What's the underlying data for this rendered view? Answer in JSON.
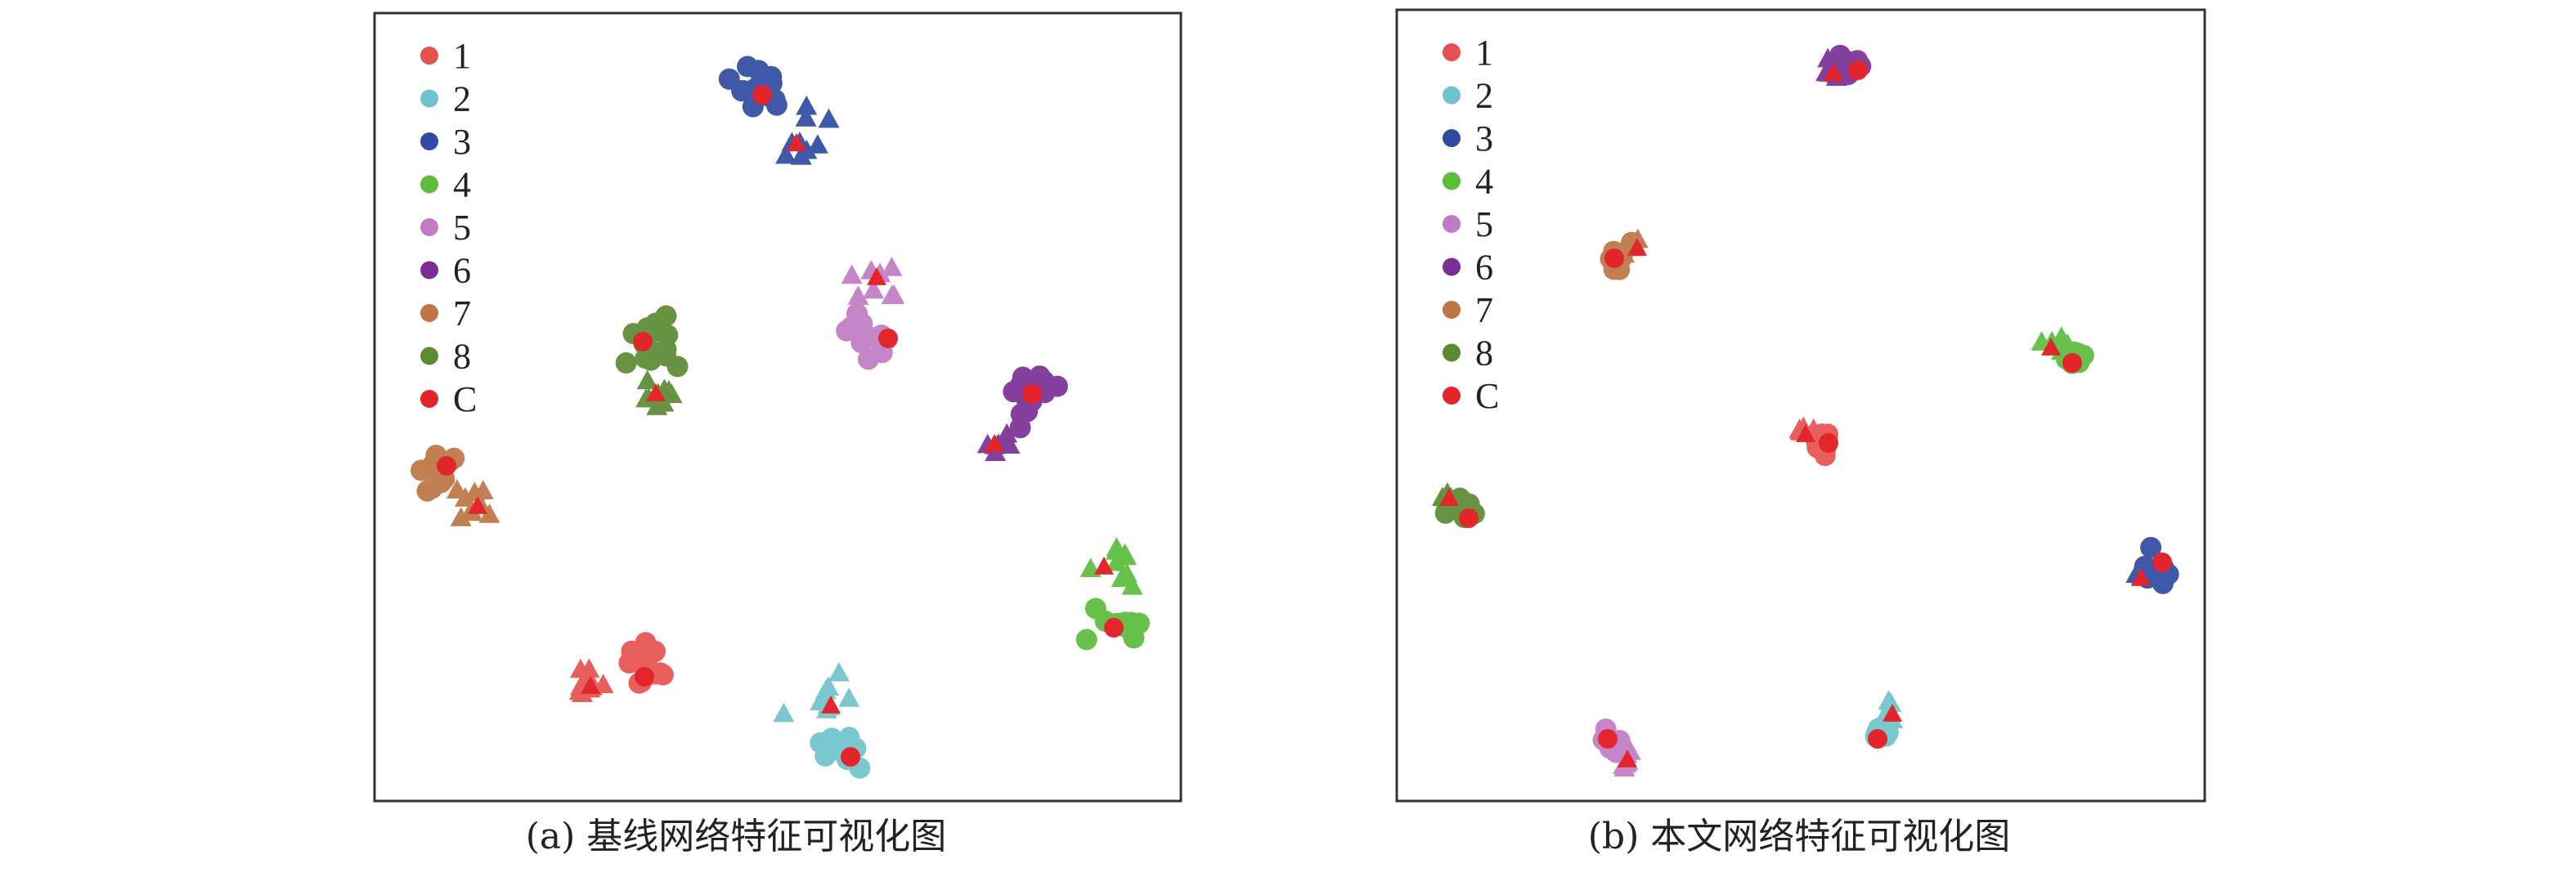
{
  "colors": {
    "1": "#e5514f",
    "2": "#70c3cc",
    "3": "#2f4aa0",
    "4": "#5cbc3b",
    "5": "#c17bc5",
    "6": "#7b2f95",
    "7": "#bd7543",
    "8": "#5b8a32",
    "C": "#e3262c"
  },
  "chart_data": [
    {
      "type": "scatter",
      "caption": "(a) 基线网络特征可视化图",
      "legend": [
        "1",
        "2",
        "3",
        "4",
        "5",
        "6",
        "7",
        "8",
        "C"
      ],
      "legend_position": "top-left",
      "marker_meaning": "circles and triangles are two sample groups per class; red markers are class centers (C)",
      "clusters": [
        {
          "class": "3",
          "circles": {
            "center": [
              230,
              45
            ],
            "spread": 16,
            "n": 16
          },
          "triangles": {
            "center": [
              262,
              82
            ],
            "spread": 17,
            "n": 9
          },
          "center_circle": [
            232,
            50
          ],
          "center_triangle": [
            253,
            80
          ]
        },
        {
          "class": "5",
          "triangles": {
            "center": [
              300,
              162
            ],
            "spread": 14,
            "n": 8
          },
          "circles": {
            "center": [
              300,
              195
            ],
            "spread": 15,
            "n": 12
          },
          "center_circle": [
            309,
            199
          ],
          "center_triangle": [
            302,
            162
          ]
        },
        {
          "class": "8",
          "circles": {
            "center": [
              167,
              203
            ],
            "spread": 16,
            "n": 16
          },
          "triangles": {
            "center": [
              167,
              232
            ],
            "spread": 10,
            "n": 9
          },
          "center_circle": [
            159,
            201
          ],
          "center_triangle": [
            167,
            233
          ]
        },
        {
          "class": "6",
          "circles": {
            "center": [
              395,
              233
            ],
            "spread": 15,
            "n": 15
          },
          "triangles": {
            "center": [
              375,
              260
            ],
            "spread": 10,
            "n": 7
          },
          "center_circle": [
            397,
            233
          ],
          "center_triangle": [
            374,
            264
          ]
        },
        {
          "class": "7",
          "circles": {
            "center": [
              35,
              278
            ],
            "spread": 12,
            "n": 11
          },
          "triangles": {
            "center": [
              58,
              302
            ],
            "spread": 12,
            "n": 9
          },
          "center_circle": [
            39,
            277
          ],
          "center_triangle": [
            58,
            302
          ]
        },
        {
          "class": "4",
          "triangles": {
            "center": [
              445,
              338
            ],
            "spread": 16,
            "n": 9
          },
          "circles": {
            "center": [
              448,
              375
            ],
            "spread": 14,
            "n": 11
          },
          "center_circle": [
            447,
            376
          ],
          "center_triangle": [
            441,
            339
          ]
        },
        {
          "class": "1",
          "circles": {
            "center": [
              160,
              400
            ],
            "spread": 16,
            "n": 14
          },
          "triangles": {
            "center": [
              127,
              410
            ],
            "spread": 12,
            "n": 11
          },
          "center_circle": [
            160,
            406
          ],
          "center_triangle": [
            127,
            412
          ]
        },
        {
          "class": "2",
          "triangles": {
            "center": [
              272,
              420
            ],
            "spread": 14,
            "n": 9
          },
          "circles": {
            "center": [
              282,
              452
            ],
            "spread": 12,
            "n": 12
          },
          "center_circle": [
            286,
            455
          ],
          "center_triangle": [
            274,
            424
          ]
        }
      ]
    },
    {
      "type": "scatter",
      "caption": "(b) 本文网络特征可视化图",
      "legend": [
        "1",
        "2",
        "3",
        "4",
        "5",
        "6",
        "7",
        "8",
        "C"
      ],
      "legend_position": "top-left",
      "marker_meaning": "circles and triangles are two sample groups per class; red markers are class centers (C)",
      "clusters": [
        {
          "class": "6",
          "circles": {
            "center": [
              270,
              36
            ],
            "spread": 7,
            "n": 10
          },
          "triangles": {
            "center": [
              262,
              38
            ],
            "spread": 6,
            "n": 6
          },
          "center_circle": [
            277,
            37
          ],
          "center_triangle": [
            262,
            39
          ]
        },
        {
          "class": "7",
          "circles": {
            "center": [
              128,
              150
            ],
            "spread": 7,
            "n": 8
          },
          "triangles": {
            "center": [
              140,
              146
            ],
            "spread": 6,
            "n": 6
          },
          "center_circle": [
            128,
            152
          ],
          "center_triangle": [
            142,
            146
          ]
        },
        {
          "class": "4",
          "circles": {
            "center": [
              408,
              213
            ],
            "spread": 7,
            "n": 10
          },
          "triangles": {
            "center": [
              396,
              206
            ],
            "spread": 6,
            "n": 6
          },
          "center_circle": [
            408,
            216
          ],
          "center_triangle": [
            395,
            207
          ]
        },
        {
          "class": "1",
          "circles": {
            "center": [
              256,
              264
            ],
            "spread": 9,
            "n": 12
          },
          "triangles": {
            "center": [
              246,
              260
            ],
            "spread": 6,
            "n": 6
          },
          "center_circle": [
            259,
            265
          ],
          "center_triangle": [
            245,
            260
          ]
        },
        {
          "class": "8",
          "circles": {
            "center": [
              36,
              307
            ],
            "spread": 7,
            "n": 9
          },
          "triangles": {
            "center": [
              27,
              300
            ],
            "spread": 5,
            "n": 6
          },
          "center_circle": [
            39,
            311
          ],
          "center_triangle": [
            27,
            299
          ]
        },
        {
          "class": "3",
          "circles": {
            "center": [
              460,
              342
            ],
            "spread": 7,
            "n": 10
          },
          "triangles": {
            "center": [
              450,
              346
            ],
            "spread": 5,
            "n": 5
          },
          "center_circle": [
            463,
            338
          ],
          "center_triangle": [
            450,
            348
          ]
        },
        {
          "class": "2",
          "triangles": {
            "center": [
              297,
              432
            ],
            "spread": 6,
            "n": 7
          },
          "circles": {
            "center": [
              291,
              443
            ],
            "spread": 6,
            "n": 7
          },
          "center_circle": [
            289,
            446
          ],
          "center_triangle": [
            298,
            431
          ]
        },
        {
          "class": "5",
          "circles": {
            "center": [
              126,
              447
            ],
            "spread": 6,
            "n": 7
          },
          "triangles": {
            "center": [
              136,
              459
            ],
            "spread": 5,
            "n": 6
          },
          "center_circle": [
            124,
            446
          ],
          "center_triangle": [
            136,
            459
          ]
        }
      ]
    }
  ]
}
